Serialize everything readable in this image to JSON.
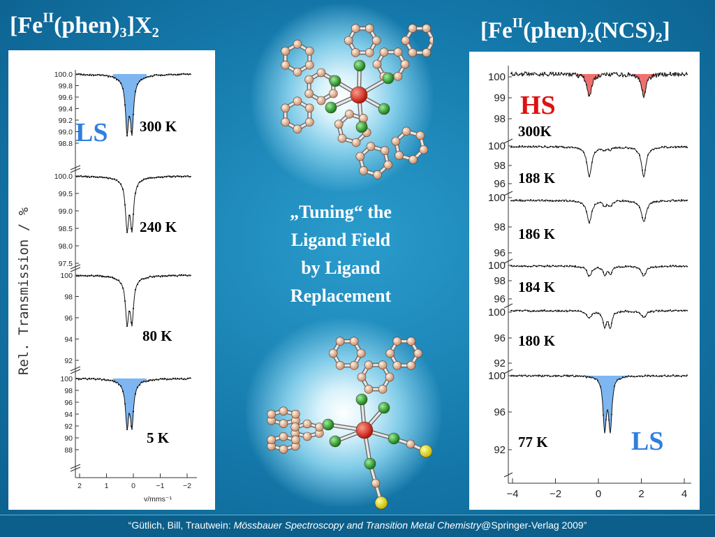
{
  "title_left": {
    "base": "[Fe",
    "sup": "II",
    "mid": "(phen)",
    "sub1": "3",
    "end": "]X",
    "sub2": "2"
  },
  "title_right": {
    "base": "[Fe",
    "sup": "II",
    "mid": "(phen)",
    "sub1": "2",
    "mid2": "(NCS)",
    "sub2": "2",
    "end": "]"
  },
  "center_text": {
    "line1": "„Tuning“ the",
    "line2": "Ligand Field",
    "line3": "by Ligand",
    "line4": "Replacement"
  },
  "footer": {
    "prefix": "“Gütlich, Bill, Trautwein: ",
    "italic": "Mössbauer Spectroscopy and Transition Metal Chemistry",
    "suffix": "@Springer-Verlag 2009”"
  },
  "colors": {
    "ls_fill": "#7db6f0",
    "hs_fill": "#f07070",
    "ls_text": "#2f7fe0",
    "hs_text": "#e01010"
  },
  "left_spectra": {
    "ylabel": "Rel.  Transmission  /  %",
    "xlabel": "v/mms⁻¹",
    "ls_label": "LS",
    "xticks": [
      "2",
      "1",
      "0",
      "−1",
      "−2"
    ],
    "panels": [
      {
        "temp": "300 K",
        "ticks": [
          "100.0",
          "99.8",
          "99.6",
          "99.4",
          "99.2",
          "99.0",
          "98.8"
        ]
      },
      {
        "temp": "240 K",
        "ticks": [
          "100.0",
          "99.5",
          "99.0",
          "98.5",
          "98.0",
          "97.5"
        ]
      },
      {
        "temp": "80 K",
        "ticks": [
          "100",
          "98",
          "96",
          "94",
          "92"
        ]
      },
      {
        "temp": "5 K",
        "ticks": [
          "100",
          "98",
          "96",
          "94",
          "92",
          "90",
          "88"
        ]
      }
    ]
  },
  "right_spectra": {
    "hs_label": "HS",
    "ls_label": "LS",
    "xticks": [
      "−4",
      "−2",
      "0",
      "2",
      "4"
    ],
    "panels": [
      {
        "temp": "300K",
        "ticks": [
          "100",
          "99",
          "98"
        ]
      },
      {
        "temp": "188 K",
        "ticks": [
          "100",
          "98",
          "96"
        ]
      },
      {
        "temp": "186 K",
        "ticks": [
          "100",
          "98",
          "96"
        ]
      },
      {
        "temp": "184 K",
        "ticks": [
          "100",
          "98",
          "96"
        ]
      },
      {
        "temp": "180 K",
        "ticks": [
          "100",
          "96",
          "92"
        ]
      },
      {
        "temp": "77 K",
        "ticks": [
          "100",
          "96",
          "92"
        ]
      }
    ]
  }
}
